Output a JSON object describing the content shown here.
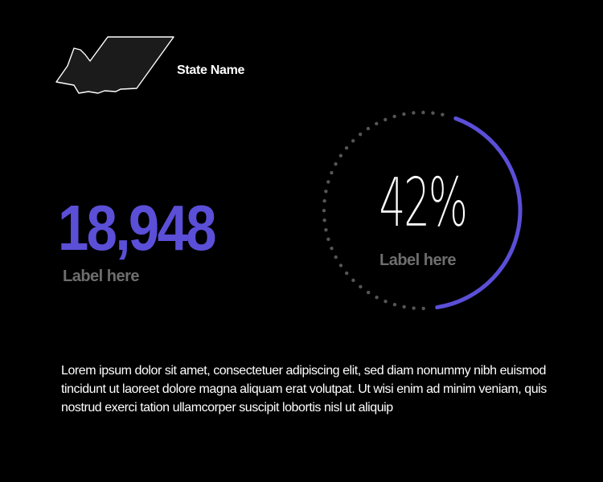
{
  "state": {
    "name": "State Name"
  },
  "stat": {
    "value": "18,948",
    "label": "Label here"
  },
  "gauge": {
    "value_text": "42%",
    "percent": 42,
    "label": "Label here"
  },
  "body_text": "Lorem ipsum dolor sit amet, consectetuer adipiscing elit, sed diam nonummy nibh euismod tincidunt ut laoreet dolore magna aliquam erat volutpat. Ut wisi enim ad minim veniam, quis nostrud exerci tation ullamcorper suscipit lobortis nisl ut aliquip",
  "colors": {
    "background": "#000000",
    "accent": "#5b4fd8",
    "label": "#6e6e6e",
    "track": "#555555",
    "text": "#ffffff"
  }
}
